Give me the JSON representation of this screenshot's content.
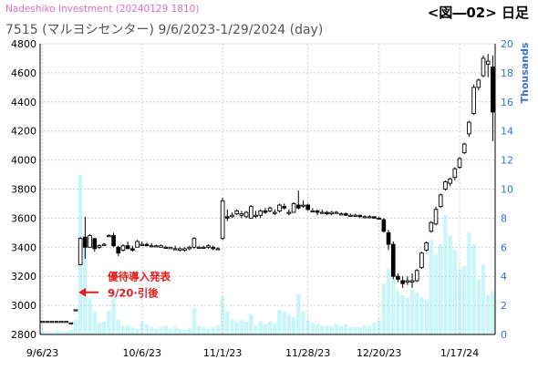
{
  "header": {
    "watermark": "Nadeshiko Investment  (20240129 1810)",
    "figure_label": "<図―02> 日足",
    "title": "7515 (マルヨシセンター) 9/6/2023-1/29/2024 (day)"
  },
  "chart_data": {
    "type": "candlestick",
    "title": "7515 (マルヨシセンター) 9/6/2023-1/29/2024 (day)",
    "price_axis": {
      "ylim": [
        2800,
        4800
      ],
      "ticks": [
        2800,
        3000,
        3200,
        3400,
        3600,
        3800,
        4000,
        4200,
        4400,
        4600,
        4800
      ]
    },
    "volume_axis": {
      "label": "Thousands",
      "ylim": [
        0,
        20
      ],
      "ticks": [
        0,
        2,
        4,
        6,
        8,
        10,
        12,
        14,
        16,
        18,
        20
      ]
    },
    "x_tick_labels": [
      {
        "label": "9/6/23",
        "index": 0
      },
      {
        "label": "10/6/23",
        "index": 21
      },
      {
        "label": "11/1/23",
        "index": 38
      },
      {
        "label": "11/28/23",
        "index": 56
      },
      {
        "label": "12/20/23",
        "index": 71
      },
      {
        "label": "1/17/24",
        "index": 88
      }
    ],
    "grid": true,
    "num_days": 96,
    "ohlc": [
      [
        2890,
        2890,
        2890,
        2890
      ],
      [
        2890,
        2890,
        2890,
        2890
      ],
      [
        2890,
        2890,
        2890,
        2890
      ],
      [
        2890,
        2890,
        2890,
        2890
      ],
      [
        2890,
        2890,
        2890,
        2890
      ],
      [
        2890,
        2890,
        2890,
        2890
      ],
      [
        2880,
        2880,
        2880,
        2880
      ],
      [
        2970,
        2970,
        2970,
        2970
      ],
      [
        3280,
        3470,
        3280,
        3460
      ],
      [
        3470,
        3610,
        3320,
        3400
      ],
      [
        3400,
        3490,
        3400,
        3480
      ],
      [
        3460,
        3460,
        3370,
        3390
      ],
      [
        3400,
        3420,
        3390,
        3410
      ],
      [
        3420,
        3430,
        3410,
        3420
      ],
      [
        3480,
        3490,
        3480,
        3480
      ],
      [
        3480,
        3500,
        3400,
        3410
      ],
      [
        3400,
        3410,
        3340,
        3360
      ],
      [
        3380,
        3420,
        3370,
        3410
      ],
      [
        3410,
        3440,
        3390,
        3390
      ],
      [
        3390,
        3410,
        3370,
        3380
      ],
      [
        3400,
        3450,
        3400,
        3440
      ],
      [
        3420,
        3440,
        3410,
        3420
      ],
      [
        3420,
        3430,
        3410,
        3410
      ],
      [
        3410,
        3430,
        3400,
        3410
      ],
      [
        3410,
        3420,
        3400,
        3410
      ],
      [
        3400,
        3420,
        3400,
        3410
      ],
      [
        3400,
        3410,
        3390,
        3400
      ],
      [
        3390,
        3400,
        3390,
        3400
      ],
      [
        3390,
        3410,
        3380,
        3390
      ],
      [
        3380,
        3400,
        3370,
        3390
      ],
      [
        3380,
        3400,
        3370,
        3390
      ],
      [
        3390,
        3410,
        3380,
        3400
      ],
      [
        3400,
        3470,
        3390,
        3460
      ],
      [
        3400,
        3410,
        3390,
        3400
      ],
      [
        3400,
        3410,
        3390,
        3400
      ],
      [
        3400,
        3420,
        3390,
        3410
      ],
      [
        3400,
        3410,
        3380,
        3390
      ],
      [
        3390,
        3400,
        3380,
        3390
      ],
      [
        3460,
        3740,
        3450,
        3720
      ],
      [
        3610,
        3660,
        3580,
        3600
      ],
      [
        3610,
        3640,
        3600,
        3620
      ],
      [
        3630,
        3660,
        3620,
        3650
      ],
      [
        3620,
        3650,
        3600,
        3630
      ],
      [
        3610,
        3650,
        3600,
        3640
      ],
      [
        3600,
        3690,
        3600,
        3680
      ],
      [
        3620,
        3650,
        3600,
        3620
      ],
      [
        3620,
        3660,
        3600,
        3650
      ],
      [
        3650,
        3670,
        3630,
        3640
      ],
      [
        3650,
        3680,
        3640,
        3670
      ],
      [
        3640,
        3660,
        3620,
        3640
      ],
      [
        3650,
        3700,
        3640,
        3690
      ],
      [
        3680,
        3700,
        3660,
        3670
      ],
      [
        3640,
        3660,
        3620,
        3640
      ],
      [
        3640,
        3710,
        3640,
        3700
      ],
      [
        3690,
        3790,
        3660,
        3670
      ],
      [
        3690,
        3720,
        3670,
        3690
      ],
      [
        3690,
        3700,
        3650,
        3660
      ],
      [
        3650,
        3670,
        3640,
        3650
      ],
      [
        3650,
        3660,
        3620,
        3640
      ],
      [
        3640,
        3660,
        3630,
        3640
      ],
      [
        3640,
        3650,
        3620,
        3630
      ],
      [
        3630,
        3650,
        3620,
        3640
      ],
      [
        3640,
        3650,
        3630,
        3640
      ],
      [
        3630,
        3640,
        3620,
        3630
      ],
      [
        3630,
        3640,
        3620,
        3620
      ],
      [
        3620,
        3630,
        3610,
        3620
      ],
      [
        3620,
        3630,
        3610,
        3620
      ],
      [
        3620,
        3620,
        3600,
        3610
      ],
      [
        3610,
        3620,
        3600,
        3610
      ],
      [
        3610,
        3620,
        3600,
        3610
      ],
      [
        3610,
        3610,
        3600,
        3600
      ],
      [
        3600,
        3610,
        3590,
        3600
      ],
      [
        3590,
        3600,
        3500,
        3510
      ],
      [
        3500,
        3520,
        3380,
        3420
      ],
      [
        3420,
        3440,
        3180,
        3200
      ],
      [
        3200,
        3220,
        3160,
        3180
      ],
      [
        3170,
        3200,
        3120,
        3150
      ],
      [
        3160,
        3200,
        3140,
        3170
      ],
      [
        3160,
        3220,
        3120,
        3170
      ],
      [
        3170,
        3250,
        3160,
        3240
      ],
      [
        3260,
        3370,
        3250,
        3360
      ],
      [
        3380,
        3440,
        3370,
        3430
      ],
      [
        3510,
        3580,
        3500,
        3570
      ],
      [
        3560,
        3680,
        3550,
        3660
      ],
      [
        3680,
        3770,
        3670,
        3760
      ],
      [
        3800,
        3860,
        3790,
        3850
      ],
      [
        3840,
        3880,
        3820,
        3870
      ],
      [
        3880,
        3950,
        3860,
        3940
      ],
      [
        3950,
        4020,
        3940,
        4010
      ],
      [
        4050,
        4120,
        4040,
        4110
      ],
      [
        4180,
        4270,
        4160,
        4260
      ],
      [
        4320,
        4520,
        4310,
        4500
      ],
      [
        4500,
        4560,
        4480,
        4550
      ],
      [
        4580,
        4720,
        4570,
        4700
      ],
      [
        4660,
        4730,
        4570,
        4680
      ],
      [
        4640,
        4720,
        4130,
        4330
      ]
    ],
    "volume_thousands": [
      0.2,
      0.2,
      0.2,
      0.3,
      0.2,
      0.2,
      0.3,
      1.0,
      11.0,
      6.0,
      2.5,
      1.5,
      0.8,
      0.9,
      1.6,
      2.8,
      1.0,
      0.6,
      0.6,
      0.5,
      0.4,
      0.9,
      0.7,
      0.5,
      0.4,
      0.5,
      0.6,
      0.4,
      0.5,
      0.4,
      0.3,
      0.4,
      1.8,
      0.6,
      0.5,
      0.4,
      0.5,
      0.6,
      2.6,
      1.6,
      1.0,
      0.9,
      1.0,
      0.9,
      1.4,
      0.6,
      0.9,
      0.7,
      0.9,
      0.8,
      1.7,
      1.6,
      1.4,
      1.2,
      2.8,
      1.6,
      1.0,
      0.8,
      0.7,
      0.6,
      0.6,
      0.5,
      0.7,
      0.6,
      0.7,
      0.5,
      0.5,
      0.5,
      0.6,
      0.6,
      0.8,
      1.0,
      3.5,
      4.5,
      3.8,
      3.0,
      2.7,
      2.5,
      3.1,
      2.9,
      2.6,
      2.4,
      6.5,
      5.5,
      6.2,
      8.2,
      6.8,
      5.8,
      4.5,
      4.7,
      7.0,
      6.2,
      3.8,
      4.8,
      2.7,
      3.0
    ],
    "annotation": {
      "lines": [
        "優待導入発表",
        "9/20·引後"
      ],
      "index": 8,
      "price": 3090
    }
  },
  "colors": {
    "volume_bar": "#c9f7f7",
    "grid": "#c9d1da",
    "annotation": "#e0201c",
    "watermark": "#e06cc7",
    "right_axis": "#3a6fd8"
  }
}
